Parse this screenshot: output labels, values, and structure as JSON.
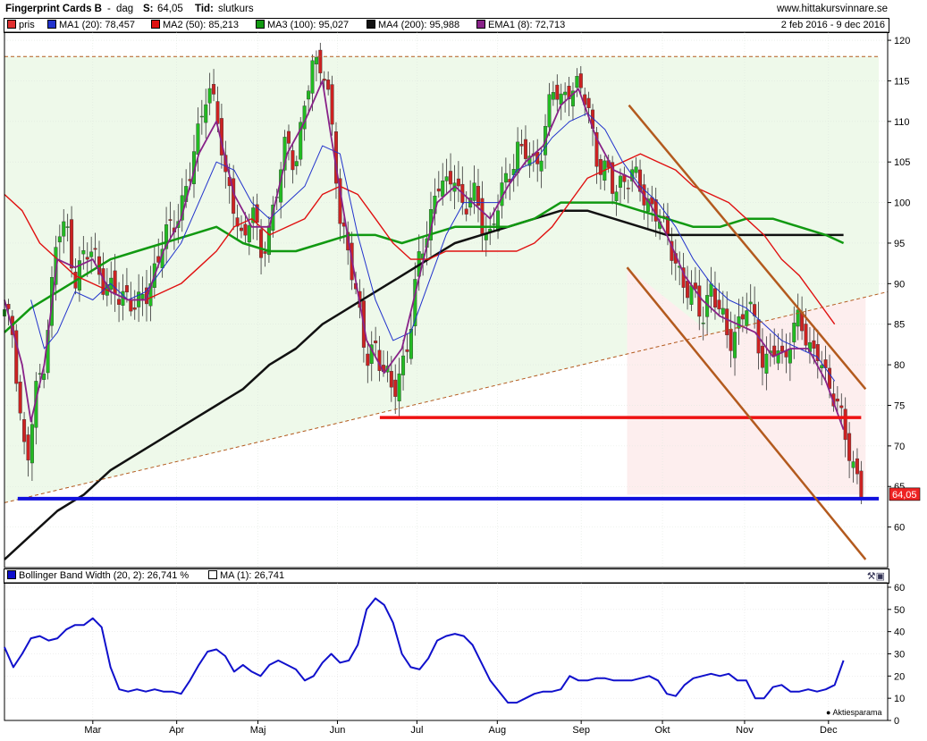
{
  "header": {
    "name": "Fingerprint Cards B",
    "interval": "dag",
    "last_label": "S:",
    "last_value": "64,05",
    "time_label": "Tid:",
    "time_value": "slutkurs",
    "website": "www.hittakursvinnare.se"
  },
  "legend_main": [
    {
      "label": "pris",
      "color": "#e03030"
    },
    {
      "label": "MA1 (20): 78,457",
      "color": "#2233cc"
    },
    {
      "label": "MA2 (50): 85,213",
      "color": "#e01010"
    },
    {
      "label": "MA3 (100): 95,027",
      "color": "#119911"
    },
    {
      "label": "MA4 (200): 95,988",
      "color": "#111111"
    },
    {
      "label": "EMA1 (8): 72,713",
      "color": "#882288"
    }
  ],
  "date_range": "2 feb 2016 - 9 dec 2016",
  "legend_sub": [
    {
      "label": "Bollinger Band Width (20, 2): 26,741   %",
      "color": "#1010cc"
    },
    {
      "label": "MA (1): 26,741",
      "color": "#ffffff"
    }
  ],
  "price_badge": "64,05",
  "footer_logo": "Aktiesparama",
  "colors": {
    "up": "#22bb22",
    "down": "#cc2222",
    "support": "#1010dd",
    "resistance": "#ee1111",
    "channel": "#b35a1e",
    "green_zone": "#eef9ea",
    "red_zone": "#fdeeee"
  },
  "chart_data": {
    "type": "candlestick",
    "price_axis": {
      "ylim": [
        55,
        121
      ],
      "ticks": [
        60,
        65,
        70,
        75,
        80,
        85,
        90,
        95,
        100,
        105,
        110,
        115,
        120
      ]
    },
    "indicator_axis": {
      "ylim": [
        0,
        62
      ],
      "ticks": [
        0,
        10,
        20,
        30,
        40,
        50,
        60
      ]
    },
    "months": [
      "Mar",
      "Apr",
      "Maj",
      "Jun",
      "Jul",
      "Aug",
      "Sep",
      "Okt",
      "Nov",
      "Dec"
    ],
    "month_positions": [
      0.1,
      0.195,
      0.287,
      0.377,
      0.467,
      0.558,
      0.653,
      0.745,
      0.838,
      0.933
    ],
    "close_path": [
      [
        0.0,
        86
      ],
      [
        0.01,
        84
      ],
      [
        0.017,
        75
      ],
      [
        0.025,
        67
      ],
      [
        0.035,
        76
      ],
      [
        0.045,
        81
      ],
      [
        0.06,
        96
      ],
      [
        0.07,
        97
      ],
      [
        0.08,
        91
      ],
      [
        0.09,
        93
      ],
      [
        0.1,
        94
      ],
      [
        0.11,
        91
      ],
      [
        0.12,
        89
      ],
      [
        0.13,
        88
      ],
      [
        0.14,
        89
      ],
      [
        0.15,
        87
      ],
      [
        0.16,
        88
      ],
      [
        0.17,
        92
      ],
      [
        0.18,
        96
      ],
      [
        0.19,
        96
      ],
      [
        0.2,
        100
      ],
      [
        0.21,
        104
      ],
      [
        0.22,
        108
      ],
      [
        0.23,
        115
      ],
      [
        0.24,
        112
      ],
      [
        0.25,
        102
      ],
      [
        0.26,
        100
      ],
      [
        0.27,
        95
      ],
      [
        0.28,
        99
      ],
      [
        0.29,
        94
      ],
      [
        0.3,
        97
      ],
      [
        0.31,
        102
      ],
      [
        0.32,
        108
      ],
      [
        0.33,
        105
      ],
      [
        0.34,
        112
      ],
      [
        0.35,
        117
      ],
      [
        0.36,
        118
      ],
      [
        0.37,
        110
      ],
      [
        0.38,
        97
      ],
      [
        0.39,
        95
      ],
      [
        0.4,
        87
      ],
      [
        0.41,
        80
      ],
      [
        0.42,
        83
      ],
      [
        0.43,
        79
      ],
      [
        0.44,
        76
      ],
      [
        0.45,
        80
      ],
      [
        0.46,
        85
      ],
      [
        0.47,
        93
      ],
      [
        0.48,
        97
      ],
      [
        0.49,
        103
      ],
      [
        0.5,
        101
      ],
      [
        0.51,
        104
      ],
      [
        0.52,
        99
      ],
      [
        0.53,
        101
      ],
      [
        0.54,
        98
      ],
      [
        0.55,
        96
      ],
      [
        0.56,
        100
      ],
      [
        0.57,
        103
      ],
      [
        0.58,
        107
      ],
      [
        0.59,
        106
      ],
      [
        0.6,
        104
      ],
      [
        0.61,
        108
      ],
      [
        0.62,
        114
      ],
      [
        0.63,
        112
      ],
      [
        0.64,
        115
      ],
      [
        0.65,
        114
      ],
      [
        0.66,
        112
      ],
      [
        0.67,
        106
      ],
      [
        0.68,
        104
      ],
      [
        0.69,
        101
      ],
      [
        0.7,
        103
      ],
      [
        0.71,
        104
      ],
      [
        0.72,
        101
      ],
      [
        0.73,
        100
      ],
      [
        0.74,
        99
      ],
      [
        0.75,
        95
      ],
      [
        0.76,
        93
      ],
      [
        0.77,
        90
      ],
      [
        0.78,
        88
      ],
      [
        0.79,
        86
      ],
      [
        0.8,
        90
      ],
      [
        0.81,
        86
      ],
      [
        0.82,
        83
      ],
      [
        0.83,
        85
      ],
      [
        0.84,
        87
      ],
      [
        0.85,
        85
      ],
      [
        0.86,
        80
      ],
      [
        0.87,
        82
      ],
      [
        0.88,
        80
      ],
      [
        0.89,
        84
      ],
      [
        0.9,
        86
      ],
      [
        0.91,
        81
      ],
      [
        0.92,
        83
      ],
      [
        0.93,
        78
      ],
      [
        0.94,
        75
      ],
      [
        0.95,
        74
      ],
      [
        0.96,
        67
      ],
      [
        0.97,
        64
      ]
    ],
    "bbw_path": [
      [
        0.0,
        33
      ],
      [
        0.01,
        24
      ],
      [
        0.02,
        30
      ],
      [
        0.03,
        37
      ],
      [
        0.04,
        38
      ],
      [
        0.05,
        36
      ],
      [
        0.06,
        37
      ],
      [
        0.07,
        41
      ],
      [
        0.08,
        43
      ],
      [
        0.09,
        43
      ],
      [
        0.1,
        46
      ],
      [
        0.11,
        42
      ],
      [
        0.12,
        24
      ],
      [
        0.13,
        14
      ],
      [
        0.14,
        13
      ],
      [
        0.15,
        14
      ],
      [
        0.16,
        13
      ],
      [
        0.17,
        14
      ],
      [
        0.18,
        13
      ],
      [
        0.19,
        13
      ],
      [
        0.2,
        12
      ],
      [
        0.21,
        18
      ],
      [
        0.22,
        25
      ],
      [
        0.23,
        31
      ],
      [
        0.24,
        32
      ],
      [
        0.25,
        29
      ],
      [
        0.26,
        22
      ],
      [
        0.27,
        25
      ],
      [
        0.28,
        22
      ],
      [
        0.29,
        20
      ],
      [
        0.3,
        25
      ],
      [
        0.31,
        27
      ],
      [
        0.32,
        25
      ],
      [
        0.33,
        23
      ],
      [
        0.34,
        18
      ],
      [
        0.35,
        20
      ],
      [
        0.36,
        26
      ],
      [
        0.37,
        30
      ],
      [
        0.38,
        26
      ],
      [
        0.39,
        27
      ],
      [
        0.4,
        34
      ],
      [
        0.41,
        50
      ],
      [
        0.42,
        55
      ],
      [
        0.43,
        52
      ],
      [
        0.44,
        44
      ],
      [
        0.45,
        30
      ],
      [
        0.46,
        24
      ],
      [
        0.47,
        23
      ],
      [
        0.48,
        28
      ],
      [
        0.49,
        36
      ],
      [
        0.5,
        38
      ],
      [
        0.51,
        39
      ],
      [
        0.52,
        38
      ],
      [
        0.53,
        34
      ],
      [
        0.54,
        26
      ],
      [
        0.55,
        18
      ],
      [
        0.56,
        13
      ],
      [
        0.57,
        8
      ],
      [
        0.58,
        8
      ],
      [
        0.59,
        10
      ],
      [
        0.6,
        12
      ],
      [
        0.61,
        13
      ],
      [
        0.62,
        13
      ],
      [
        0.63,
        14
      ],
      [
        0.64,
        20
      ],
      [
        0.65,
        18
      ],
      [
        0.66,
        18
      ],
      [
        0.67,
        19
      ],
      [
        0.68,
        19
      ],
      [
        0.69,
        18
      ],
      [
        0.7,
        18
      ],
      [
        0.71,
        18
      ],
      [
        0.72,
        19
      ],
      [
        0.73,
        20
      ],
      [
        0.74,
        18
      ],
      [
        0.75,
        12
      ],
      [
        0.76,
        11
      ],
      [
        0.77,
        16
      ],
      [
        0.78,
        19
      ],
      [
        0.79,
        20
      ],
      [
        0.8,
        21
      ],
      [
        0.81,
        20
      ],
      [
        0.82,
        21
      ],
      [
        0.83,
        18
      ],
      [
        0.84,
        18
      ],
      [
        0.85,
        10
      ],
      [
        0.86,
        10
      ],
      [
        0.87,
        15
      ],
      [
        0.88,
        16
      ],
      [
        0.89,
        13
      ],
      [
        0.9,
        13
      ],
      [
        0.91,
        14
      ],
      [
        0.92,
        13
      ],
      [
        0.93,
        14
      ],
      [
        0.94,
        16
      ],
      [
        0.95,
        27
      ]
    ],
    "ma20_path": [
      [
        0.03,
        88
      ],
      [
        0.045,
        82
      ],
      [
        0.06,
        84
      ],
      [
        0.08,
        89
      ],
      [
        0.1,
        88
      ],
      [
        0.12,
        90
      ],
      [
        0.14,
        88
      ],
      [
        0.16,
        89
      ],
      [
        0.18,
        92
      ],
      [
        0.2,
        95
      ],
      [
        0.22,
        100
      ],
      [
        0.24,
        105
      ],
      [
        0.26,
        104
      ],
      [
        0.28,
        100
      ],
      [
        0.3,
        98
      ],
      [
        0.32,
        100
      ],
      [
        0.34,
        102
      ],
      [
        0.36,
        107
      ],
      [
        0.38,
        106
      ],
      [
        0.4,
        96
      ],
      [
        0.42,
        88
      ],
      [
        0.44,
        83
      ],
      [
        0.46,
        84
      ],
      [
        0.48,
        90
      ],
      [
        0.5,
        96
      ],
      [
        0.52,
        100
      ],
      [
        0.54,
        100
      ],
      [
        0.56,
        100
      ],
      [
        0.58,
        104
      ],
      [
        0.6,
        105
      ],
      [
        0.62,
        108
      ],
      [
        0.64,
        110
      ],
      [
        0.66,
        111
      ],
      [
        0.68,
        109
      ],
      [
        0.7,
        105
      ],
      [
        0.72,
        102
      ],
      [
        0.74,
        100
      ],
      [
        0.76,
        97
      ],
      [
        0.78,
        93
      ],
      [
        0.8,
        90
      ],
      [
        0.82,
        88
      ],
      [
        0.84,
        87
      ],
      [
        0.86,
        85
      ],
      [
        0.88,
        83
      ],
      [
        0.9,
        82
      ],
      [
        0.92,
        81
      ],
      [
        0.94,
        78
      ]
    ],
    "ma50_path": [
      [
        0.0,
        101
      ],
      [
        0.02,
        99
      ],
      [
        0.04,
        95
      ],
      [
        0.06,
        93
      ],
      [
        0.08,
        91
      ],
      [
        0.1,
        90
      ],
      [
        0.12,
        89
      ],
      [
        0.14,
        88
      ],
      [
        0.16,
        88
      ],
      [
        0.18,
        89
      ],
      [
        0.2,
        90
      ],
      [
        0.22,
        92
      ],
      [
        0.24,
        94
      ],
      [
        0.26,
        97
      ],
      [
        0.28,
        98
      ],
      [
        0.3,
        96
      ],
      [
        0.32,
        97
      ],
      [
        0.34,
        98
      ],
      [
        0.36,
        101
      ],
      [
        0.38,
        102
      ],
      [
        0.4,
        101
      ],
      [
        0.42,
        98
      ],
      [
        0.44,
        95
      ],
      [
        0.46,
        93
      ],
      [
        0.48,
        93
      ],
      [
        0.5,
        94
      ],
      [
        0.52,
        94
      ],
      [
        0.54,
        94
      ],
      [
        0.56,
        94
      ],
      [
        0.58,
        94
      ],
      [
        0.6,
        95
      ],
      [
        0.62,
        97
      ],
      [
        0.64,
        100
      ],
      [
        0.66,
        103
      ],
      [
        0.68,
        104
      ],
      [
        0.7,
        105
      ],
      [
        0.72,
        106
      ],
      [
        0.74,
        105
      ],
      [
        0.76,
        104
      ],
      [
        0.78,
        102
      ],
      [
        0.8,
        101
      ],
      [
        0.82,
        100
      ],
      [
        0.84,
        98
      ],
      [
        0.86,
        96
      ],
      [
        0.88,
        93
      ],
      [
        0.9,
        91
      ],
      [
        0.92,
        88
      ],
      [
        0.94,
        85
      ]
    ],
    "ma100_path": [
      [
        0.0,
        84
      ],
      [
        0.03,
        87
      ],
      [
        0.06,
        89
      ],
      [
        0.09,
        91
      ],
      [
        0.12,
        93
      ],
      [
        0.15,
        94
      ],
      [
        0.18,
        95
      ],
      [
        0.21,
        96
      ],
      [
        0.24,
        97
      ],
      [
        0.27,
        95
      ],
      [
        0.3,
        94
      ],
      [
        0.33,
        94
      ],
      [
        0.36,
        95
      ],
      [
        0.39,
        96
      ],
      [
        0.42,
        96
      ],
      [
        0.45,
        95
      ],
      [
        0.48,
        96
      ],
      [
        0.51,
        97
      ],
      [
        0.54,
        97
      ],
      [
        0.57,
        97
      ],
      [
        0.6,
        98
      ],
      [
        0.63,
        100
      ],
      [
        0.66,
        100
      ],
      [
        0.69,
        100
      ],
      [
        0.72,
        99
      ],
      [
        0.75,
        98
      ],
      [
        0.78,
        97
      ],
      [
        0.81,
        97
      ],
      [
        0.84,
        98
      ],
      [
        0.87,
        98
      ],
      [
        0.9,
        97
      ],
      [
        0.93,
        96
      ],
      [
        0.95,
        95
      ]
    ],
    "ma200_path": [
      [
        0.0,
        56
      ],
      [
        0.03,
        59
      ],
      [
        0.06,
        62
      ],
      [
        0.09,
        64
      ],
      [
        0.12,
        67
      ],
      [
        0.15,
        69
      ],
      [
        0.18,
        71
      ],
      [
        0.21,
        73
      ],
      [
        0.24,
        75
      ],
      [
        0.27,
        77
      ],
      [
        0.3,
        80
      ],
      [
        0.33,
        82
      ],
      [
        0.36,
        85
      ],
      [
        0.39,
        87
      ],
      [
        0.42,
        89
      ],
      [
        0.45,
        91
      ],
      [
        0.48,
        93
      ],
      [
        0.51,
        95
      ],
      [
        0.54,
        96
      ],
      [
        0.57,
        97
      ],
      [
        0.6,
        98
      ],
      [
        0.63,
        99
      ],
      [
        0.66,
        99
      ],
      [
        0.69,
        98
      ],
      [
        0.72,
        97
      ],
      [
        0.75,
        96
      ],
      [
        0.78,
        96
      ],
      [
        0.81,
        96
      ],
      [
        0.84,
        96
      ],
      [
        0.87,
        96
      ],
      [
        0.9,
        96
      ],
      [
        0.93,
        96
      ],
      [
        0.95,
        96
      ]
    ],
    "ema8_path": [
      [
        0.0,
        88
      ],
      [
        0.02,
        80
      ],
      [
        0.03,
        73
      ],
      [
        0.045,
        80
      ],
      [
        0.06,
        93
      ],
      [
        0.08,
        92
      ],
      [
        0.1,
        93
      ],
      [
        0.12,
        89
      ],
      [
        0.14,
        88
      ],
      [
        0.16,
        88
      ],
      [
        0.18,
        94
      ],
      [
        0.2,
        98
      ],
      [
        0.22,
        106
      ],
      [
        0.24,
        110
      ],
      [
        0.26,
        101
      ],
      [
        0.28,
        97
      ],
      [
        0.3,
        97
      ],
      [
        0.32,
        106
      ],
      [
        0.34,
        110
      ],
      [
        0.36,
        115
      ],
      [
        0.37,
        108
      ],
      [
        0.39,
        95
      ],
      [
        0.41,
        83
      ],
      [
        0.43,
        79
      ],
      [
        0.45,
        82
      ],
      [
        0.47,
        91
      ],
      [
        0.49,
        100
      ],
      [
        0.51,
        102
      ],
      [
        0.53,
        100
      ],
      [
        0.55,
        98
      ],
      [
        0.57,
        102
      ],
      [
        0.59,
        105
      ],
      [
        0.61,
        107
      ],
      [
        0.63,
        112
      ],
      [
        0.65,
        114
      ],
      [
        0.67,
        108
      ],
      [
        0.69,
        104
      ],
      [
        0.71,
        103
      ],
      [
        0.73,
        100
      ],
      [
        0.75,
        96
      ],
      [
        0.77,
        91
      ],
      [
        0.79,
        88
      ],
      [
        0.81,
        86
      ],
      [
        0.83,
        85
      ],
      [
        0.85,
        84
      ],
      [
        0.87,
        81
      ],
      [
        0.89,
        82
      ],
      [
        0.91,
        82
      ],
      [
        0.93,
        78
      ],
      [
        0.95,
        72
      ]
    ],
    "lines": {
      "support_low": 63.5,
      "support_red": 73.5,
      "dashed_top": 118,
      "trend_dashed": [
        [
          0.0,
          63
        ],
        [
          1.0,
          89
        ]
      ],
      "channel_upper": [
        [
          0.707,
          112
        ],
        [
          0.975,
          77
        ]
      ],
      "channel_lower": [
        [
          0.705,
          92
        ],
        [
          0.975,
          56
        ]
      ]
    }
  }
}
